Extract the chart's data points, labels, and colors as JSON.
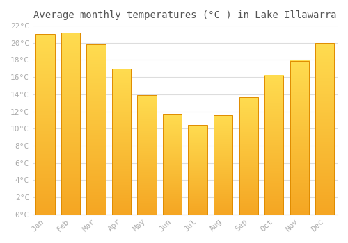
{
  "title": "Average monthly temperatures (°C ) in Lake Illawarra",
  "months": [
    "Jan",
    "Feb",
    "Mar",
    "Apr",
    "May",
    "Jun",
    "Jul",
    "Aug",
    "Sep",
    "Oct",
    "Nov",
    "Dec"
  ],
  "values": [
    21.0,
    21.2,
    19.8,
    17.0,
    13.9,
    11.7,
    10.4,
    11.6,
    13.7,
    16.2,
    17.9,
    20.0
  ],
  "bar_color_bottom": "#F5A623",
  "bar_color_top": "#FFE066",
  "bar_edge_color": "#E08C00",
  "ylim": [
    0,
    22
  ],
  "yticks": [
    0,
    2,
    4,
    6,
    8,
    10,
    12,
    14,
    16,
    18,
    20,
    22
  ],
  "background_color": "#FFFFFF",
  "grid_color": "#DDDDDD",
  "title_fontsize": 10,
  "tick_fontsize": 8,
  "tick_color": "#AAAAAA",
  "font_family": "monospace",
  "bar_width": 0.75
}
